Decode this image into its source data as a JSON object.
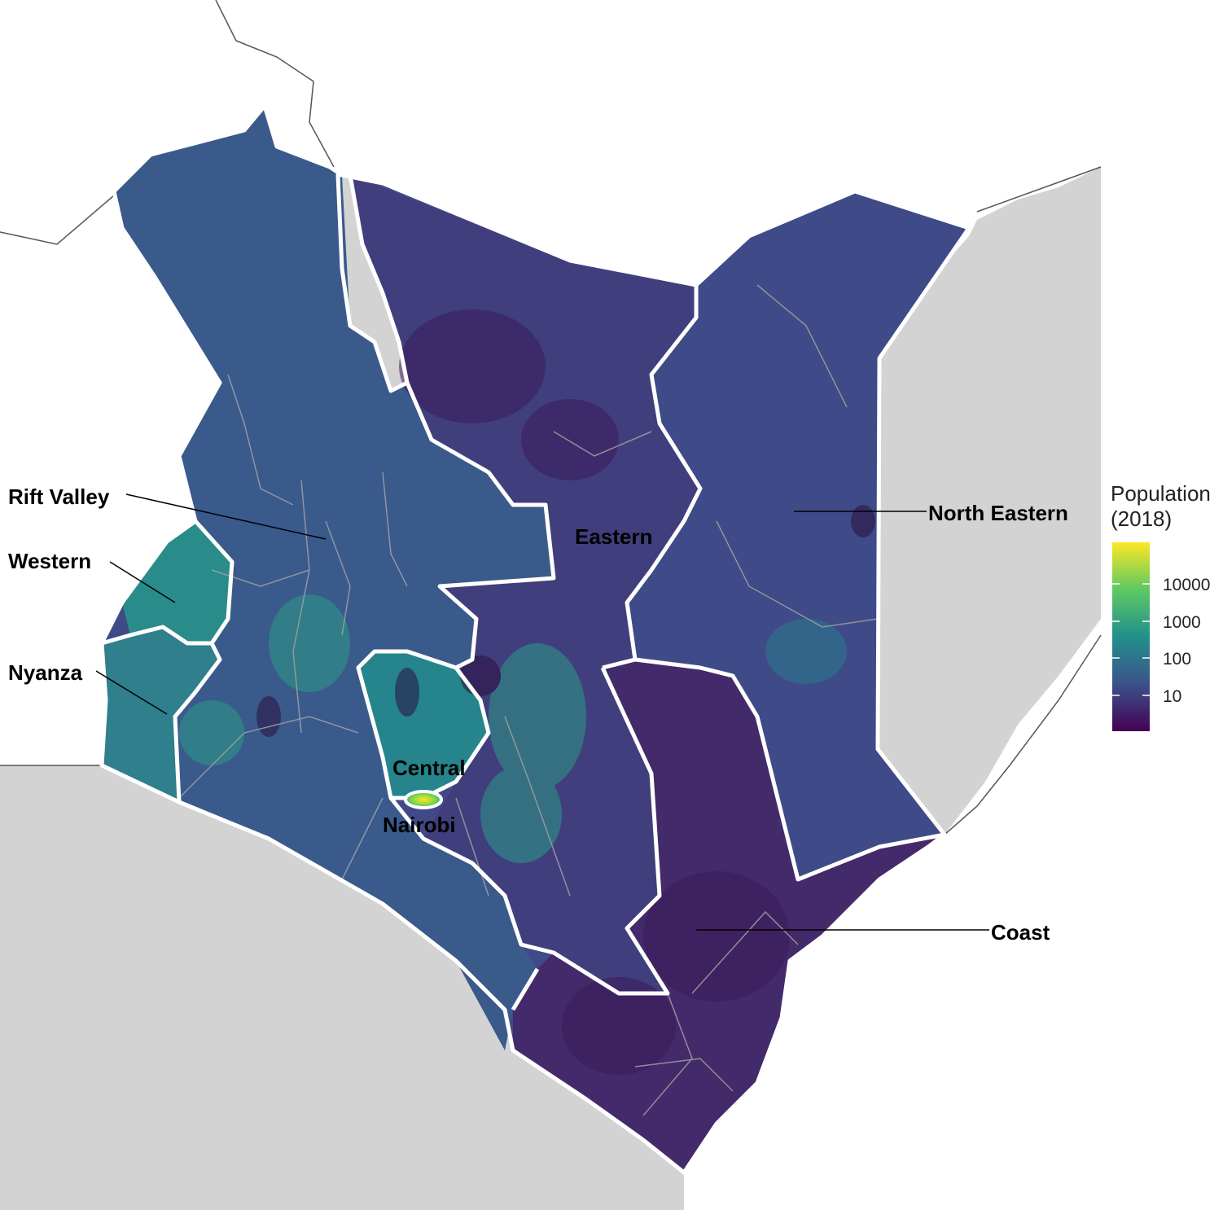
{
  "map": {
    "colors": {
      "ocean": "#ffffff",
      "land_outside": "#d3d3d3",
      "region_border": "#ffffff",
      "county_border": "#a0a0a0",
      "dark": "#46245e",
      "mid": "#3b528b",
      "teal": "#21908c",
      "green": "#5ec962",
      "yellow": "#fde725"
    },
    "regions": [
      {
        "id": "rift-valley",
        "label": "Rift Valley"
      },
      {
        "id": "western",
        "label": "Western"
      },
      {
        "id": "nyanza",
        "label": "Nyanza"
      },
      {
        "id": "eastern",
        "label": "Eastern"
      },
      {
        "id": "north-eastern",
        "label": "North Eastern"
      },
      {
        "id": "central",
        "label": "Central"
      },
      {
        "id": "nairobi",
        "label": "Nairobi"
      },
      {
        "id": "coast",
        "label": "Coast"
      }
    ]
  },
  "legend": {
    "title_line1": "Population",
    "title_line2": "(2018)",
    "scale": "log",
    "ticks": [
      "10000",
      "1000",
      "100",
      "10"
    ],
    "gradient": [
      "#fde725",
      "#5ec962",
      "#21908c",
      "#3b528b",
      "#440154"
    ]
  }
}
